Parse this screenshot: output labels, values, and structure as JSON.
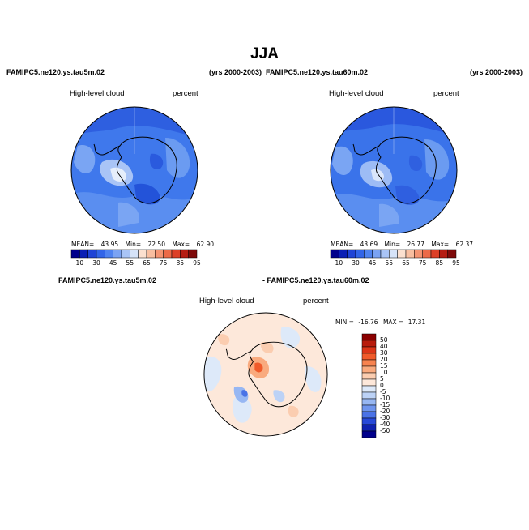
{
  "title": "JJA",
  "panels": [
    {
      "case": "FAMIPC5.ne120.ys.tau5m.02",
      "years": "(yrs 2000-2003)",
      "variable": "High-level cloud",
      "units": "percent",
      "stats": {
        "mean_label": "MEAN=",
        "mean": "43.95",
        "min_label": "Min=",
        "min": "22.50",
        "max_label": "Max=",
        "max": "62.90"
      },
      "colorbar": {
        "ticks": [
          "10",
          "30",
          "45",
          "55",
          "65",
          "75",
          "85",
          "95"
        ],
        "colors": [
          "#00008b",
          "#0a1fb4",
          "#1f44d6",
          "#3265e8",
          "#4f83f0",
          "#7ba3f3",
          "#a9c4f6",
          "#d6e3f8",
          "#fbe0cf",
          "#f8bea0",
          "#f49472",
          "#ec6a48",
          "#dc3f26",
          "#b51c12",
          "#7e0a0a"
        ]
      }
    },
    {
      "case": "FAMIPC5.ne120.ys.tau60m.02",
      "years": "(yrs 2000-2003)",
      "variable": "High-level cloud",
      "units": "percent",
      "stats": {
        "mean_label": "MEAN=",
        "mean": "43.69",
        "min_label": "Min=",
        "min": "26.77",
        "max_label": "Max=",
        "max": "62.37"
      },
      "colorbar": {
        "ticks": [
          "10",
          "30",
          "45",
          "55",
          "65",
          "75",
          "85",
          "95"
        ],
        "colors": [
          "#00008b",
          "#0a1fb4",
          "#1f44d6",
          "#3265e8",
          "#4f83f0",
          "#7ba3f3",
          "#a9c4f6",
          "#d6e3f8",
          "#fbe0cf",
          "#f8bea0",
          "#f49472",
          "#ec6a48",
          "#dc3f26",
          "#b51c12",
          "#7e0a0a"
        ]
      }
    },
    {
      "case_a": "FAMIPC5.ne120.ys.tau5m.02",
      "case_b": "- FAMIPC5.ne120.ys.tau60m.02",
      "variable": "High-level cloud",
      "units": "percent",
      "stats": {
        "min_label": "MIN =",
        "min": "-16.76",
        "max_label": "MAX =",
        "max": "17.31"
      },
      "colorbar": {
        "ticks": [
          "50",
          "40",
          "30",
          "20",
          "15",
          "10",
          "5",
          "0",
          "-5",
          "-10",
          "-15",
          "-20",
          "-30",
          "-40",
          "-50"
        ],
        "colors": [
          "#8b0000",
          "#b81c0c",
          "#dc3517",
          "#f05a2a",
          "#f7834f",
          "#f9aa7e",
          "#fbcdb0",
          "#fde8da",
          "#dde9f9",
          "#bcd2f6",
          "#97b7f3",
          "#6f95ee",
          "#4a72e6",
          "#2749d8",
          "#0f22b0",
          "#00008b"
        ]
      }
    }
  ]
}
